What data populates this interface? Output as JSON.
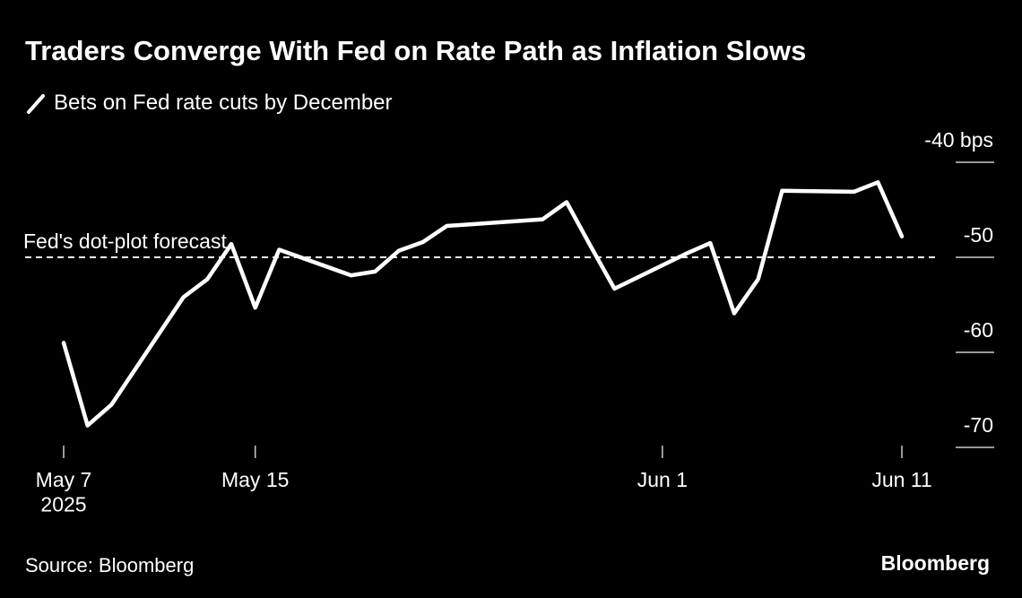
{
  "chart_data": {
    "type": "line",
    "title": "Traders Converge With Fed on Rate Path as Inflation Slows",
    "x": [
      "2025-05-07",
      "2025-05-08",
      "2025-05-09",
      "2025-05-12",
      "2025-05-13",
      "2025-05-14",
      "2025-05-15",
      "2025-05-16",
      "2025-05-19",
      "2025-05-20",
      "2025-05-21",
      "2025-05-22",
      "2025-05-23",
      "2025-05-27",
      "2025-05-28",
      "2025-05-29",
      "2025-05-30",
      "2025-06-02",
      "2025-06-03",
      "2025-06-04",
      "2025-06-05",
      "2025-06-06",
      "2025-06-09",
      "2025-06-10",
      "2025-06-11"
    ],
    "series": [
      {
        "name": "Bets on Fed rate cuts by December",
        "color": "#ffffff",
        "values": [
          -59.0,
          -67.7,
          -65.5,
          -54.2,
          -52.3,
          -48.6,
          -55.3,
          -49.2,
          -51.9,
          -51.5,
          -49.3,
          -48.4,
          -46.7,
          -46.0,
          -44.2,
          -48.8,
          -53.3,
          -49.6,
          -48.5,
          -55.9,
          -52.3,
          -43.0,
          -43.1,
          -42.1,
          -47.8
        ]
      }
    ],
    "reference_lines": [
      {
        "value": -50,
        "label": "Fed's dot-plot forecast"
      }
    ],
    "xlim": [
      "2025-05-07",
      "2025-06-11"
    ],
    "xticks": [
      {
        "value": "2025-05-07",
        "label": "May 7\n2025"
      },
      {
        "value": "2025-05-15",
        "label": "May 15"
      },
      {
        "value": "2025-06-01",
        "label": "Jun 1"
      },
      {
        "value": "2025-06-11",
        "label": "Jun 11"
      }
    ],
    "ylim": [
      -70,
      -40
    ],
    "yticks": [
      {
        "value": -40,
        "label": "-40 bps"
      },
      -50,
      -60,
      -70
    ],
    "source": "Source: Bloomberg",
    "brand": "Bloomberg"
  }
}
